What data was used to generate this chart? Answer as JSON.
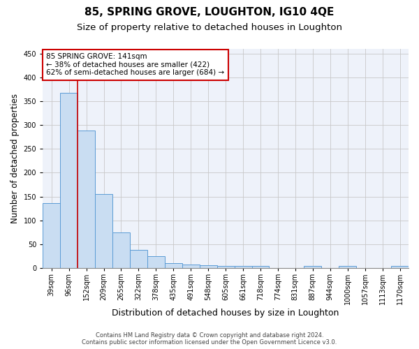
{
  "title": "85, SPRING GROVE, LOUGHTON, IG10 4QE",
  "subtitle": "Size of property relative to detached houses in Loughton",
  "xlabel": "Distribution of detached houses by size in Loughton",
  "ylabel": "Number of detached properties",
  "footer_line1": "Contains HM Land Registry data © Crown copyright and database right 2024.",
  "footer_line2": "Contains public sector information licensed under the Open Government Licence v3.0.",
  "bar_labels": [
    "39sqm",
    "96sqm",
    "152sqm",
    "209sqm",
    "265sqm",
    "322sqm",
    "378sqm",
    "435sqm",
    "491sqm",
    "548sqm",
    "605sqm",
    "661sqm",
    "718sqm",
    "774sqm",
    "831sqm",
    "887sqm",
    "944sqm",
    "1000sqm",
    "1057sqm",
    "1113sqm",
    "1170sqm"
  ],
  "bar_values": [
    136,
    367,
    289,
    155,
    75,
    38,
    25,
    10,
    8,
    6,
    4,
    4,
    4,
    0,
    0,
    4,
    0,
    4,
    0,
    0,
    4
  ],
  "bar_color": "#c9ddf2",
  "bar_edge_color": "#5b9bd5",
  "red_line_x": 1.5,
  "annotation_text": "85 SPRING GROVE: 141sqm\n← 38% of detached houses are smaller (422)\n62% of semi-detached houses are larger (684) →",
  "annotation_box_color": "#ffffff",
  "annotation_box_edge_color": "#cc0000",
  "ylim": [
    0,
    460
  ],
  "yticks": [
    0,
    50,
    100,
    150,
    200,
    250,
    300,
    350,
    400,
    450
  ],
  "background_color": "#ffffff",
  "plot_bg_color": "#eef2fa",
  "grid_color": "#c8c8c8",
  "title_fontsize": 11,
  "subtitle_fontsize": 9.5,
  "xlabel_fontsize": 9,
  "ylabel_fontsize": 8.5,
  "tick_fontsize": 7,
  "annotation_fontsize": 7.5,
  "footer_fontsize": 6
}
